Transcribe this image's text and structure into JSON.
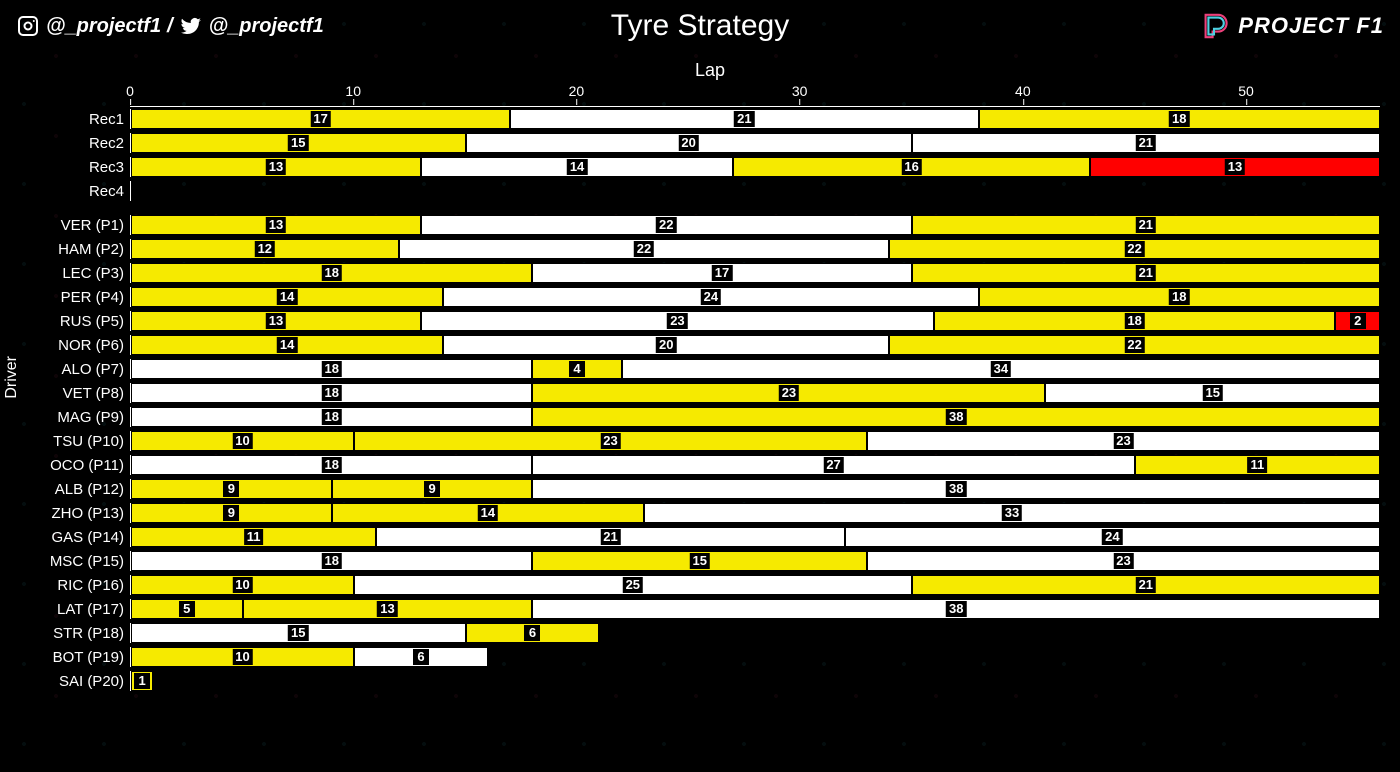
{
  "header": {
    "instagram_icon": "instagram",
    "twitter_icon": "twitter",
    "handle": "@_projectf1",
    "handle_sep": " / ",
    "title": "Tyre Strategy",
    "brand_text": "PROJECT F1"
  },
  "chart": {
    "type": "stacked-horizontal-bar",
    "x_label": "Lap",
    "y_label": "Driver",
    "total_laps": 56,
    "x_ticks": [
      0,
      10,
      20,
      30,
      40,
      50
    ],
    "background_color": "#000000",
    "compound_colors": {
      "S": "#ff0000",
      "M": "#f6ea00",
      "H": "#ffffff"
    },
    "label_bg": "#000000",
    "label_color": "#ffffff",
    "group_gap_after": 3,
    "rows": [
      {
        "label": "Rec1",
        "stints": [
          {
            "c": "M",
            "len": 17
          },
          {
            "c": "H",
            "len": 21
          },
          {
            "c": "M",
            "len": 18
          }
        ]
      },
      {
        "label": "Rec2",
        "stints": [
          {
            "c": "M",
            "len": 15
          },
          {
            "c": "H",
            "len": 20
          },
          {
            "c": "H",
            "len": 21
          }
        ]
      },
      {
        "label": "Rec3",
        "stints": [
          {
            "c": "M",
            "len": 13
          },
          {
            "c": "H",
            "len": 14
          },
          {
            "c": "M",
            "len": 16
          },
          {
            "c": "S",
            "len": 13
          }
        ]
      },
      {
        "label": "Rec4",
        "stints": []
      },
      {
        "label": "VER (P1)",
        "stints": [
          {
            "c": "M",
            "len": 13
          },
          {
            "c": "H",
            "len": 22
          },
          {
            "c": "M",
            "len": 21
          }
        ]
      },
      {
        "label": "HAM (P2)",
        "stints": [
          {
            "c": "M",
            "len": 12
          },
          {
            "c": "H",
            "len": 22
          },
          {
            "c": "M",
            "len": 22
          }
        ]
      },
      {
        "label": "LEC (P3)",
        "stints": [
          {
            "c": "M",
            "len": 18
          },
          {
            "c": "H",
            "len": 17
          },
          {
            "c": "M",
            "len": 21
          }
        ]
      },
      {
        "label": "PER (P4)",
        "stints": [
          {
            "c": "M",
            "len": 14
          },
          {
            "c": "H",
            "len": 24
          },
          {
            "c": "M",
            "len": 18
          }
        ]
      },
      {
        "label": "RUS (P5)",
        "stints": [
          {
            "c": "M",
            "len": 13
          },
          {
            "c": "H",
            "len": 23
          },
          {
            "c": "M",
            "len": 18
          },
          {
            "c": "S",
            "len": 2
          }
        ]
      },
      {
        "label": "NOR (P6)",
        "stints": [
          {
            "c": "M",
            "len": 14
          },
          {
            "c": "H",
            "len": 20
          },
          {
            "c": "M",
            "len": 22
          }
        ]
      },
      {
        "label": "ALO (P7)",
        "stints": [
          {
            "c": "H",
            "len": 18
          },
          {
            "c": "M",
            "len": 4
          },
          {
            "c": "H",
            "len": 34
          }
        ]
      },
      {
        "label": "VET (P8)",
        "stints": [
          {
            "c": "H",
            "len": 18
          },
          {
            "c": "M",
            "len": 23
          },
          {
            "c": "H",
            "len": 15
          }
        ]
      },
      {
        "label": "MAG (P9)",
        "stints": [
          {
            "c": "H",
            "len": 18
          },
          {
            "c": "M",
            "len": 38
          }
        ]
      },
      {
        "label": "TSU (P10)",
        "stints": [
          {
            "c": "M",
            "len": 10
          },
          {
            "c": "M",
            "len": 23
          },
          {
            "c": "H",
            "len": 23
          }
        ]
      },
      {
        "label": "OCO (P11)",
        "stints": [
          {
            "c": "H",
            "len": 18
          },
          {
            "c": "H",
            "len": 27
          },
          {
            "c": "M",
            "len": 11
          }
        ]
      },
      {
        "label": "ALB (P12)",
        "stints": [
          {
            "c": "M",
            "len": 9
          },
          {
            "c": "M",
            "len": 9
          },
          {
            "c": "H",
            "len": 38
          }
        ]
      },
      {
        "label": "ZHO (P13)",
        "stints": [
          {
            "c": "M",
            "len": 9
          },
          {
            "c": "M",
            "len": 14
          },
          {
            "c": "H",
            "len": 33
          }
        ]
      },
      {
        "label": "GAS (P14)",
        "stints": [
          {
            "c": "M",
            "len": 11
          },
          {
            "c": "H",
            "len": 21
          },
          {
            "c": "H",
            "len": 24
          }
        ]
      },
      {
        "label": "MSC (P15)",
        "stints": [
          {
            "c": "H",
            "len": 18
          },
          {
            "c": "M",
            "len": 15
          },
          {
            "c": "H",
            "len": 23
          }
        ]
      },
      {
        "label": "RIC (P16)",
        "stints": [
          {
            "c": "M",
            "len": 10
          },
          {
            "c": "H",
            "len": 25
          },
          {
            "c": "M",
            "len": 21
          }
        ]
      },
      {
        "label": "LAT (P17)",
        "stints": [
          {
            "c": "M",
            "len": 5
          },
          {
            "c": "M",
            "len": 13
          },
          {
            "c": "H",
            "len": 38
          }
        ]
      },
      {
        "label": "STR (P18)",
        "stints": [
          {
            "c": "H",
            "len": 15
          },
          {
            "c": "M",
            "len": 6
          }
        ]
      },
      {
        "label": "BOT (P19)",
        "stints": [
          {
            "c": "M",
            "len": 10
          },
          {
            "c": "H",
            "len": 6
          }
        ]
      },
      {
        "label": "SAI (P20)",
        "stints": [
          {
            "c": "M",
            "len": 1
          }
        ]
      }
    ]
  }
}
